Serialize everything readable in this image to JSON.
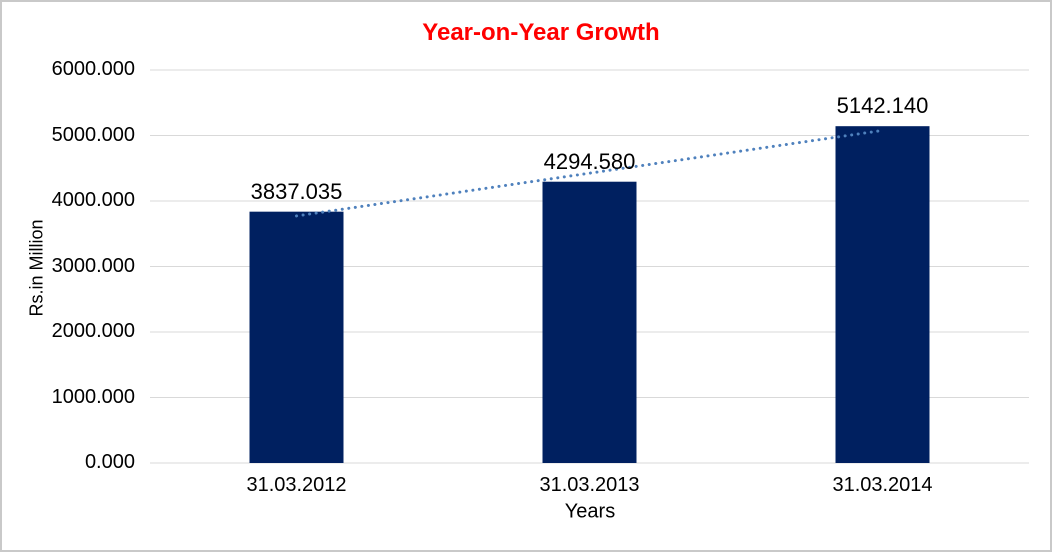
{
  "frame": {
    "background": "#FFFFFF",
    "border_color": "#C9C9C9"
  },
  "chart_data": {
    "type": "bar",
    "title": "Year-on-Year Growth",
    "title_color": "#FF0000",
    "xlabel": "Years",
    "ylabel": "Rs.in Million",
    "categories": [
      "31.03.2012",
      "31.03.2013",
      "31.03.2014"
    ],
    "values": [
      3837.035,
      4294.58,
      5142.14
    ],
    "data_labels": [
      "3837.035",
      "4294.580",
      "5142.140"
    ],
    "ylim": [
      0,
      6000
    ],
    "y_tick_interval": 1000,
    "y_tick_labels": [
      "0.000",
      "1000.000",
      "2000.000",
      "3000.000",
      "4000.000",
      "5000.000",
      "6000.000"
    ],
    "grid": true,
    "legend": "none",
    "bar_color": "#002060",
    "gridline_color": "#D9D9D9",
    "axis_text_color": "#000000",
    "trendline": {
      "type": "linear",
      "line_style": "dotted",
      "color": "#4F81BD"
    }
  }
}
